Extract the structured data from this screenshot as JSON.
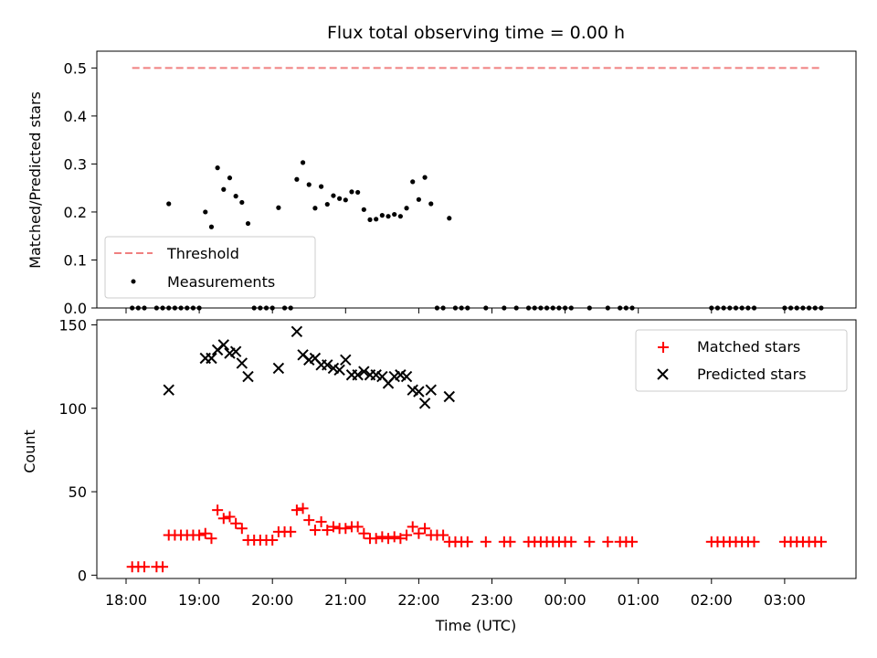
{
  "chart_data": [
    {
      "type": "scatter",
      "title": "Flux total observing time = 0.00 h",
      "xlabel": "",
      "ylabel": "Matched/Predicted stars",
      "ylim": [
        0,
        0.535
      ],
      "xlim": [
        "17:45",
        "04:00"
      ],
      "yticks": [
        "0.0",
        "0.1",
        "0.2",
        "0.3",
        "0.4",
        "0.5"
      ],
      "legend": {
        "placement": "lower-left",
        "entries": [
          "Threshold",
          "Measurements"
        ]
      },
      "threshold": {
        "name": "Threshold",
        "value": 0.5,
        "x_range": [
          "18:05",
          "03:30"
        ],
        "color": "#f08080",
        "style": "dashed"
      },
      "series": [
        {
          "name": "Measurements",
          "color": "#000000",
          "points": [
            [
              "18:05",
              0
            ],
            [
              "18:10",
              0
            ],
            [
              "18:15",
              0
            ],
            [
              "18:25",
              0
            ],
            [
              "18:30",
              0
            ],
            [
              "18:35",
              0
            ],
            [
              "18:40",
              0
            ],
            [
              "18:45",
              0
            ],
            [
              "18:50",
              0
            ],
            [
              "18:55",
              0
            ],
            [
              "19:00",
              0
            ],
            [
              "18:35",
              0.217
            ],
            [
              "19:05",
              0.2
            ],
            [
              "19:10",
              0.169
            ],
            [
              "19:15",
              0.292
            ],
            [
              "19:20",
              0.247
            ],
            [
              "19:25",
              0.271
            ],
            [
              "19:30",
              0.233
            ],
            [
              "19:35",
              0.22
            ],
            [
              "19:40",
              0.176
            ],
            [
              "19:45",
              0
            ],
            [
              "19:50",
              0
            ],
            [
              "19:55",
              0
            ],
            [
              "20:00",
              0
            ],
            [
              "20:10",
              0
            ],
            [
              "20:15",
              0
            ],
            [
              "20:05",
              0.209
            ],
            [
              "20:20",
              0.268
            ],
            [
              "20:25",
              0.303
            ],
            [
              "20:30",
              0.257
            ],
            [
              "20:35",
              0.208
            ],
            [
              "20:40",
              0.253
            ],
            [
              "20:45",
              0.216
            ],
            [
              "20:50",
              0.234
            ],
            [
              "20:55",
              0.228
            ],
            [
              "21:00",
              0.225
            ],
            [
              "21:05",
              0.242
            ],
            [
              "21:10",
              0.241
            ],
            [
              "21:15",
              0.205
            ],
            [
              "21:20",
              0.184
            ],
            [
              "21:25",
              0.185
            ],
            [
              "21:30",
              0.193
            ],
            [
              "21:35",
              0.191
            ],
            [
              "21:40",
              0.195
            ],
            [
              "21:45",
              0.191
            ],
            [
              "21:50",
              0.208
            ],
            [
              "21:55",
              0.263
            ],
            [
              "22:00",
              0.226
            ],
            [
              "22:05",
              0.272
            ],
            [
              "22:10",
              0.217
            ],
            [
              "22:25",
              0.187
            ],
            [
              "22:15",
              0
            ],
            [
              "22:20",
              0
            ],
            [
              "22:30",
              0
            ],
            [
              "22:35",
              0
            ],
            [
              "22:40",
              0
            ],
            [
              "22:55",
              0
            ],
            [
              "23:10",
              0
            ],
            [
              "23:20",
              0
            ],
            [
              "23:30",
              0
            ],
            [
              "23:35",
              0
            ],
            [
              "23:40",
              0
            ],
            [
              "23:45",
              0
            ],
            [
              "23:50",
              0
            ],
            [
              "23:55",
              0
            ],
            [
              "00:00",
              0
            ],
            [
              "00:05",
              0
            ],
            [
              "00:20",
              0
            ],
            [
              "00:35",
              0
            ],
            [
              "00:45",
              0
            ],
            [
              "00:50",
              0
            ],
            [
              "00:55",
              0
            ],
            [
              "02:00",
              0
            ],
            [
              "02:05",
              0
            ],
            [
              "02:10",
              0
            ],
            [
              "02:15",
              0
            ],
            [
              "02:20",
              0
            ],
            [
              "02:25",
              0
            ],
            [
              "02:30",
              0
            ],
            [
              "02:35",
              0
            ],
            [
              "03:00",
              0
            ],
            [
              "03:05",
              0
            ],
            [
              "03:10",
              0
            ],
            [
              "03:15",
              0
            ],
            [
              "03:20",
              0
            ],
            [
              "03:25",
              0
            ],
            [
              "03:30",
              0
            ]
          ]
        }
      ]
    },
    {
      "type": "scatter",
      "title": "",
      "xlabel": "Time (UTC)",
      "ylabel": "Count",
      "ylim": [
        -2,
        153
      ],
      "xlim": [
        "17:45",
        "04:00"
      ],
      "yticks": [
        "0",
        "50",
        "100",
        "150"
      ],
      "xticks": [
        "18:00",
        "19:00",
        "20:00",
        "21:00",
        "22:00",
        "23:00",
        "00:00",
        "01:00",
        "02:00",
        "03:00"
      ],
      "legend": {
        "placement": "top-right",
        "entries": [
          "Matched stars",
          "Predicted stars"
        ]
      },
      "series": [
        {
          "name": "Matched stars",
          "color": "#ff0000",
          "marker": "plus",
          "points": [
            [
              "18:05",
              5
            ],
            [
              "18:10",
              5
            ],
            [
              "18:15",
              5
            ],
            [
              "18:25",
              5
            ],
            [
              "18:30",
              5
            ],
            [
              "18:35",
              24
            ],
            [
              "18:40",
              24
            ],
            [
              "18:45",
              24
            ],
            [
              "18:50",
              24
            ],
            [
              "18:55",
              24
            ],
            [
              "19:00",
              24
            ],
            [
              "19:05",
              25
            ],
            [
              "19:10",
              22
            ],
            [
              "19:15",
              39
            ],
            [
              "19:20",
              34
            ],
            [
              "19:25",
              35
            ],
            [
              "19:30",
              31
            ],
            [
              "19:35",
              28
            ],
            [
              "19:40",
              21
            ],
            [
              "19:45",
              21
            ],
            [
              "19:50",
              21
            ],
            [
              "19:55",
              21
            ],
            [
              "20:00",
              21
            ],
            [
              "20:05",
              26
            ],
            [
              "20:10",
              26
            ],
            [
              "20:15",
              26
            ],
            [
              "20:20",
              39
            ],
            [
              "20:25",
              40
            ],
            [
              "20:30",
              33
            ],
            [
              "20:35",
              27
            ],
            [
              "20:40",
              32
            ],
            [
              "20:45",
              27
            ],
            [
              "20:50",
              29
            ],
            [
              "20:55",
              28
            ],
            [
              "21:00",
              28
            ],
            [
              "21:05",
              29
            ],
            [
              "21:10",
              29
            ],
            [
              "21:15",
              25
            ],
            [
              "21:20",
              22
            ],
            [
              "21:25",
              22
            ],
            [
              "21:30",
              23
            ],
            [
              "21:35",
              22
            ],
            [
              "21:40",
              23
            ],
            [
              "21:45",
              22
            ],
            [
              "21:50",
              24
            ],
            [
              "21:55",
              29
            ],
            [
              "22:00",
              25
            ],
            [
              "22:05",
              28
            ],
            [
              "22:10",
              24
            ],
            [
              "22:15",
              24
            ],
            [
              "22:20",
              24
            ],
            [
              "22:25",
              20
            ],
            [
              "22:30",
              20
            ],
            [
              "22:35",
              20
            ],
            [
              "22:40",
              20
            ],
            [
              "22:55",
              20
            ],
            [
              "23:10",
              20
            ],
            [
              "23:15",
              20
            ],
            [
              "23:30",
              20
            ],
            [
              "23:35",
              20
            ],
            [
              "23:40",
              20
            ],
            [
              "23:45",
              20
            ],
            [
              "23:50",
              20
            ],
            [
              "23:55",
              20
            ],
            [
              "00:00",
              20
            ],
            [
              "00:05",
              20
            ],
            [
              "00:20",
              20
            ],
            [
              "00:35",
              20
            ],
            [
              "00:45",
              20
            ],
            [
              "00:50",
              20
            ],
            [
              "00:55",
              20
            ],
            [
              "02:00",
              20
            ],
            [
              "02:05",
              20
            ],
            [
              "02:10",
              20
            ],
            [
              "02:15",
              20
            ],
            [
              "02:20",
              20
            ],
            [
              "02:25",
              20
            ],
            [
              "02:30",
              20
            ],
            [
              "02:35",
              20
            ],
            [
              "03:00",
              20
            ],
            [
              "03:05",
              20
            ],
            [
              "03:10",
              20
            ],
            [
              "03:15",
              20
            ],
            [
              "03:20",
              20
            ],
            [
              "03:25",
              20
            ],
            [
              "03:30",
              20
            ]
          ]
        },
        {
          "name": "Predicted stars",
          "color": "#000000",
          "marker": "x",
          "points": [
            [
              "18:35",
              111
            ],
            [
              "19:05",
              130
            ],
            [
              "19:10",
              130
            ],
            [
              "19:15",
              135
            ],
            [
              "19:20",
              138
            ],
            [
              "19:25",
              133
            ],
            [
              "19:30",
              134
            ],
            [
              "19:35",
              127
            ],
            [
              "19:40",
              119
            ],
            [
              "20:05",
              124
            ],
            [
              "20:20",
              146
            ],
            [
              "20:25",
              132
            ],
            [
              "20:30",
              129
            ],
            [
              "20:35",
              130
            ],
            [
              "20:40",
              126
            ],
            [
              "20:45",
              126
            ],
            [
              "20:50",
              124
            ],
            [
              "20:55",
              123
            ],
            [
              "21:00",
              129
            ],
            [
              "21:05",
              120
            ],
            [
              "21:10",
              120
            ],
            [
              "21:15",
              122
            ],
            [
              "21:20",
              120
            ],
            [
              "21:25",
              120
            ],
            [
              "21:30",
              119
            ],
            [
              "21:35",
              115
            ],
            [
              "21:40",
              119
            ],
            [
              "21:45",
              120
            ],
            [
              "21:50",
              119
            ],
            [
              "21:55",
              111
            ],
            [
              "22:00",
              110
            ],
            [
              "22:05",
              103
            ],
            [
              "22:10",
              111
            ],
            [
              "22:25",
              107
            ]
          ]
        }
      ]
    }
  ]
}
